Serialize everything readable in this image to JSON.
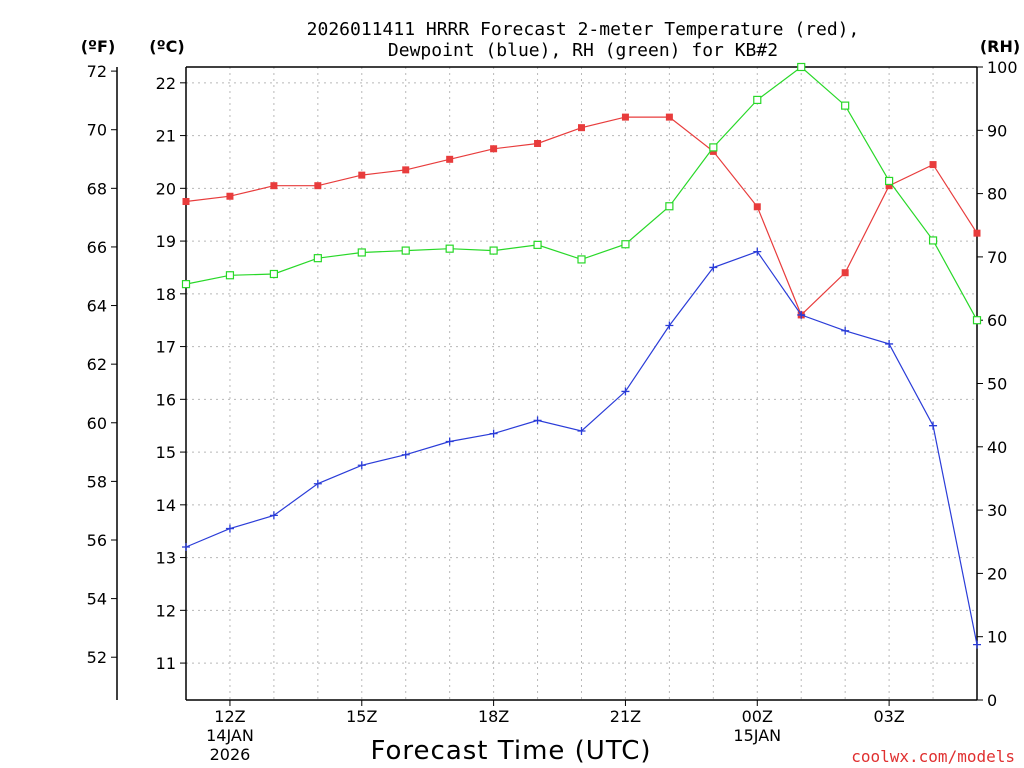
{
  "chart_data": {
    "type": "line",
    "title_line1": "2026011411 HRRR Forecast 2-meter Temperature (red),",
    "title_line2": "Dewpoint (blue), RH (green) for KB#2",
    "xlabel": "Forecast Time (UTC)",
    "credit": "coolwx.com/models",
    "units": {
      "f": "(ºF)",
      "c": "(ºC)",
      "rh": "(RH)"
    },
    "x_hours": [
      11,
      12,
      13,
      14,
      15,
      16,
      17,
      18,
      19,
      20,
      21,
      22,
      23,
      24,
      25,
      26,
      27,
      28,
      29
    ],
    "xlim": [
      11,
      29
    ],
    "x_ticks": [
      {
        "h": 12,
        "l1": "12Z",
        "l2": "14JAN",
        "l3": "2026"
      },
      {
        "h": 15,
        "l1": "15Z",
        "l2": "",
        "l3": ""
      },
      {
        "h": 18,
        "l1": "18Z",
        "l2": "",
        "l3": ""
      },
      {
        "h": 21,
        "l1": "21Z",
        "l2": "",
        "l3": ""
      },
      {
        "h": 24,
        "l1": "00Z",
        "l2": "15JAN",
        "l3": ""
      },
      {
        "h": 27,
        "l1": "03Z",
        "l2": "",
        "l3": ""
      }
    ],
    "c_ticks": [
      11,
      12,
      13,
      14,
      15,
      16,
      17,
      18,
      19,
      20,
      21,
      22
    ],
    "f_ticks": [
      52,
      54,
      56,
      58,
      60,
      62,
      64,
      66,
      68,
      70,
      72
    ],
    "rh_ticks": [
      0,
      10,
      20,
      30,
      40,
      50,
      60,
      70,
      80,
      90,
      100
    ],
    "ylim_c": [
      10.3,
      22.3
    ],
    "ylim_rh": [
      0,
      100
    ],
    "grid": true,
    "series": [
      {
        "name": "Temperature",
        "axis": "c",
        "color": "#e83c3c",
        "marker": "filled-square",
        "values": [
          19.75,
          19.85,
          20.05,
          20.05,
          20.25,
          20.35,
          20.55,
          20.75,
          20.85,
          21.15,
          21.35,
          21.35,
          20.7,
          19.65,
          17.6,
          18.4,
          20.05,
          20.45,
          19.15
        ]
      },
      {
        "name": "Dewpoint",
        "axis": "c",
        "color": "#2a3cd8",
        "marker": "plus",
        "values": [
          13.2,
          13.55,
          13.8,
          14.4,
          14.75,
          14.95,
          15.2,
          15.35,
          15.6,
          15.4,
          16.15,
          17.4,
          18.5,
          18.8,
          17.6,
          17.3,
          17.05,
          15.5,
          11.35
        ]
      },
      {
        "name": "RH",
        "axis": "rh",
        "color": "#28d828",
        "marker": "open-square",
        "values": [
          65.7,
          67.1,
          67.3,
          69.8,
          70.7,
          71.0,
          71.3,
          71.0,
          71.9,
          69.6,
          72.0,
          78.0,
          87.3,
          94.8,
          100,
          93.9,
          82.0,
          72.6,
          60.0
        ]
      }
    ]
  }
}
